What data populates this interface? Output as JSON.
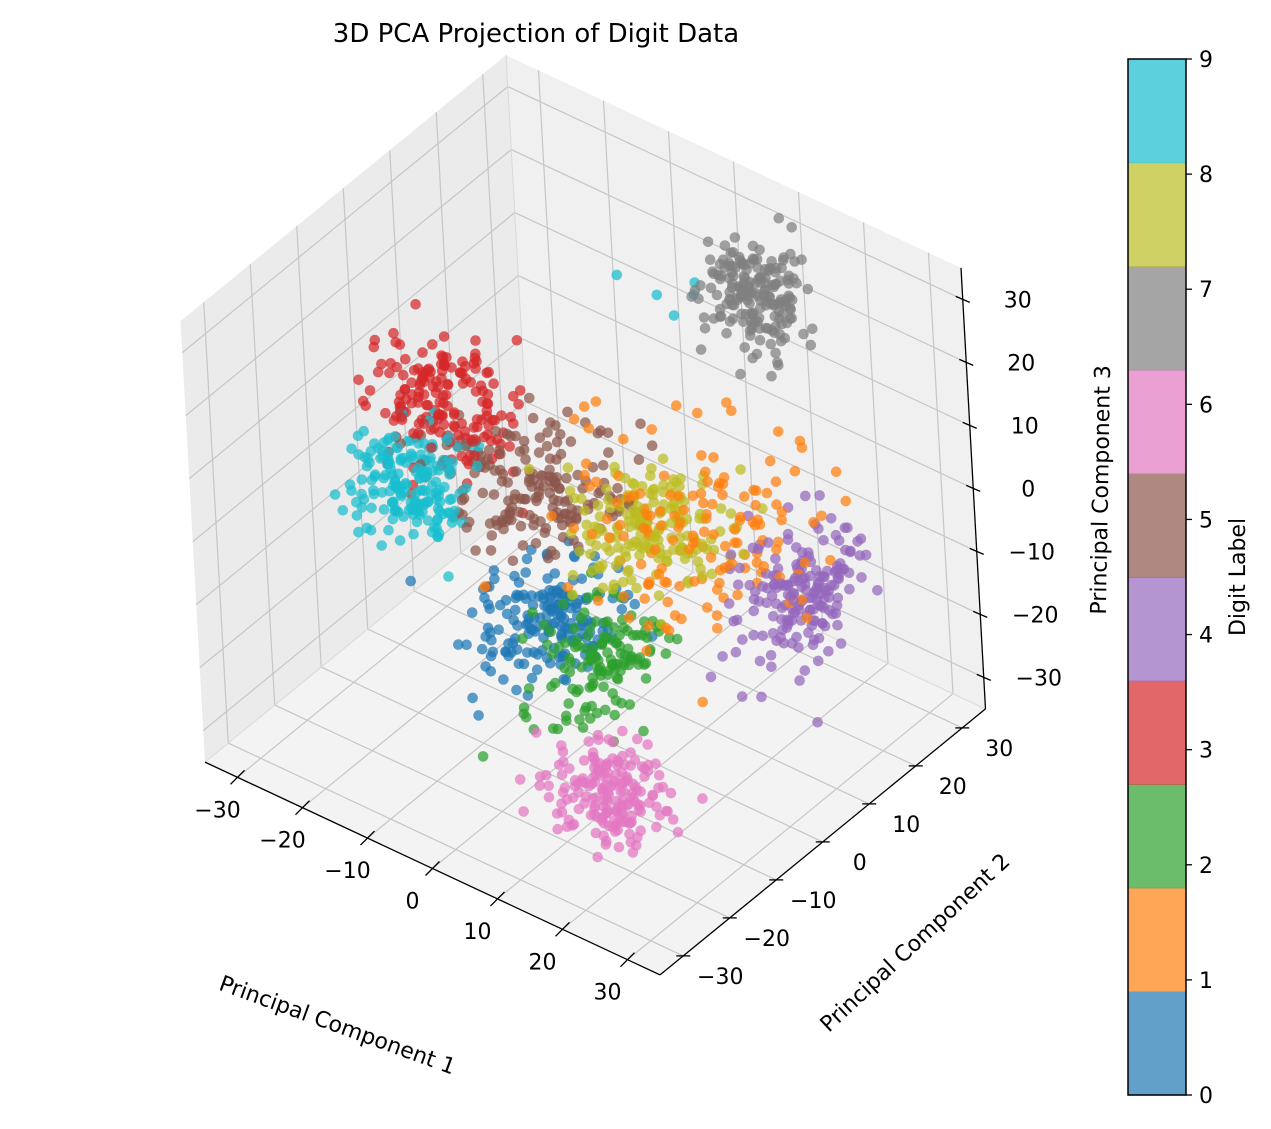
{
  "chart_data": {
    "type": "scatter",
    "title": "3D PCA Projection of Digit Data",
    "xlabel": "Principal Component 1",
    "ylabel": "Principal Component 2",
    "zlabel": "Principal Component 3",
    "xlim": [
      -35,
      35
    ],
    "ylim": [
      -35,
      35
    ],
    "zlim": [
      -35,
      35
    ],
    "xticks": [
      "−30",
      "−20",
      "−10",
      "0",
      "10",
      "20",
      "30"
    ],
    "yticks": [
      "−30",
      "−20",
      "−10",
      "0",
      "10",
      "20",
      "30"
    ],
    "zticks": [
      "−30",
      "−20",
      "−10",
      "0",
      "10",
      "20",
      "30"
    ],
    "colorbar": {
      "label": "Digit Label",
      "ticks": [
        "0",
        "1",
        "2",
        "3",
        "4",
        "5",
        "6",
        "7",
        "8",
        "9"
      ],
      "colors": [
        "#1f77b4",
        "#ff7f0e",
        "#2ca02c",
        "#d62728",
        "#9467bd",
        "#8c564b",
        "#e377c2",
        "#7f7f7f",
        "#bcbd22",
        "#17becf"
      ]
    },
    "grid": true,
    "clusters": [
      {
        "label": "0",
        "color": "#1f77b4",
        "count": 180,
        "center": [
          -8,
          2,
          -22
        ],
        "spread": [
          7,
          9,
          5
        ]
      },
      {
        "label": "1",
        "color": "#ff7f0e",
        "count": 150,
        "center": [
          14,
          5,
          2
        ],
        "spread": [
          13,
          13,
          11
        ]
      },
      {
        "label": "2",
        "color": "#2ca02c",
        "count": 140,
        "center": [
          3,
          -2,
          -20
        ],
        "spread": [
          6,
          9,
          6
        ]
      },
      {
        "label": "3",
        "color": "#d62728",
        "count": 180,
        "center": [
          -25,
          5,
          2
        ],
        "spread": [
          8,
          6,
          8
        ]
      },
      {
        "label": "4",
        "color": "#9467bd",
        "count": 180,
        "center": [
          26,
          10,
          -6
        ],
        "spread": [
          5,
          9,
          7
        ]
      },
      {
        "label": "5",
        "color": "#8c564b",
        "count": 180,
        "center": [
          -12,
          6,
          -6
        ],
        "spread": [
          9,
          9,
          6
        ]
      },
      {
        "label": "6",
        "color": "#e377c2",
        "count": 180,
        "center": [
          15,
          -17,
          -27
        ],
        "spread": [
          7,
          6,
          5
        ]
      },
      {
        "label": "7",
        "color": "#7f7f7f",
        "count": 180,
        "center": [
          10,
          25,
          25
        ],
        "spread": [
          5,
          5,
          6
        ]
      },
      {
        "label": "8",
        "color": "#bcbd22",
        "count": 180,
        "center": [
          6,
          5,
          -3
        ],
        "spread": [
          8,
          8,
          5
        ]
      },
      {
        "label": "9",
        "color": "#17becf",
        "count": 180,
        "center": [
          -23,
          -5,
          -3
        ],
        "spread": [
          6,
          7,
          5
        ]
      }
    ],
    "extra_points": [
      {
        "label": "9",
        "points": [
          [
            -1,
            19,
            23
          ],
          [
            0,
            21,
            19
          ],
          [
            1,
            24,
            21
          ],
          [
            2,
            23,
            24
          ],
          [
            -1,
            11,
            31
          ]
        ]
      }
    ]
  }
}
